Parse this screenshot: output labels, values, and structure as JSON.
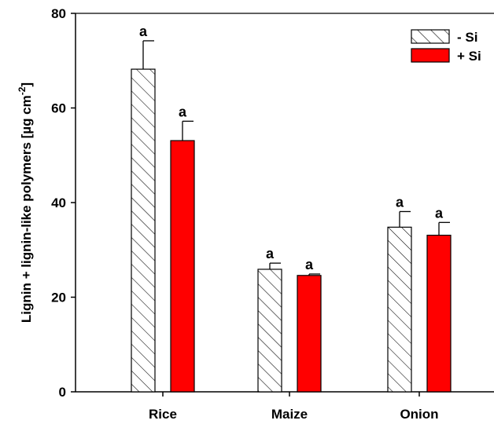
{
  "chart_data": {
    "type": "bar",
    "categories": [
      "Rice",
      "Maize",
      "Onion"
    ],
    "series": [
      {
        "name": "- Si",
        "fill": "hatched",
        "color": "#ffffff",
        "values": [
          68.2,
          25.9,
          34.8
        ],
        "errors": [
          6.0,
          1.3,
          3.3
        ],
        "labels": [
          "a",
          "a",
          "a"
        ]
      },
      {
        "name": "+ Si",
        "fill": "solid",
        "color": "#ff0000",
        "values": [
          53.1,
          24.6,
          33.1
        ],
        "errors": [
          4.1,
          0.3,
          2.7
        ],
        "labels": [
          "a",
          "a",
          "a"
        ]
      }
    ],
    "ylabel": "Lignin + lignin-like polymers [µg cm",
    "ylabel_sup": "-2",
    "ylabel_close": "]",
    "ylim": [
      0,
      80
    ],
    "yticks": [
      "0",
      "20",
      "40",
      "60",
      "80"
    ],
    "legend_position": "top-right",
    "grid": false
  }
}
